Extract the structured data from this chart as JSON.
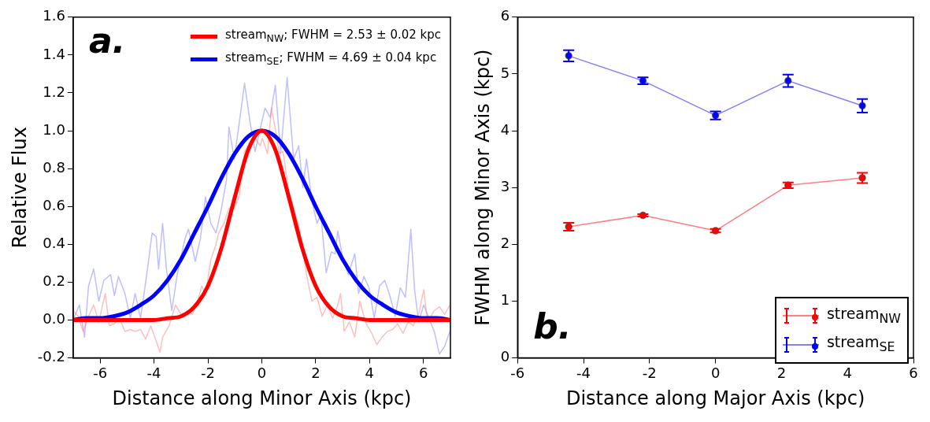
{
  "chart_data": [
    {
      "type": "line",
      "xlabel": "Distance along Minor Axis (kpc)",
      "ylabel": "Relative Flux",
      "xlim": [
        -7,
        7
      ],
      "xticks": [
        -6,
        -4,
        -2,
        0,
        2,
        4,
        6
      ],
      "ylim": [
        -0.2,
        1.6
      ],
      "yticks": [
        -0.2,
        {
          "value": 0,
          "label": "0.0"
        },
        0.2,
        0.4,
        0.6,
        0.8,
        {
          "value": 1,
          "label": "1.0"
        },
        1.2,
        1.4,
        1.6
      ],
      "grid": false,
      "legend": "top right",
      "marker": "none",
      "annotations": [
        "a."
      ],
      "series": [
        {
          "color": "#ff8080",
          "x": [
            -7,
            -6.82,
            -6.63,
            -6.43,
            -6.24,
            -6.05,
            -5.81,
            -5.66,
            -5.47,
            -5.28,
            -5.08,
            -4.88,
            -4.7,
            -4.5,
            -4.31,
            -4.12,
            -3.92,
            -3.78,
            -3.68,
            -3.44,
            -3.2,
            -2.96,
            -2.76,
            -2.57,
            -2.38,
            -2.23,
            -2.09,
            -1.89,
            -1.7,
            -1.6,
            -1.41,
            -1.22,
            -1.02,
            -0.83,
            -0.64,
            -0.44,
            -0.25,
            -0.06,
            0.02,
            0.21,
            0.36,
            0.5,
            0.65,
            0.79,
            0.99,
            1.18,
            1.37,
            1.52,
            1.66,
            1.86,
            2.05,
            2.24,
            2.43,
            2.63,
            2.82,
            2.92,
            3.06,
            3.25,
            3.45,
            3.64,
            3.84,
            4.08,
            4.27,
            4.46,
            4.66,
            4.85,
            5.04,
            5.24,
            5.43,
            5.62,
            5.82,
            6.01,
            6.15,
            6.4,
            6.59,
            6.78,
            6.98
          ],
          "values": [
            0.05,
            0.02,
            -0.06,
            0.02,
            0.08,
            -0.01,
            0.14,
            -0.03,
            -0.02,
            0.01,
            -0.06,
            -0.05,
            -0.06,
            -0.05,
            -0.1,
            -0.03,
            -0.11,
            -0.17,
            -0.09,
            -0.03,
            0.08,
            0.02,
            0.05,
            0.03,
            0.1,
            0.18,
            0.14,
            0.32,
            0.4,
            0.46,
            0.51,
            0.59,
            0.59,
            0.66,
            0.89,
            0.94,
            0.96,
            0.92,
            0.96,
            0.88,
            1.12,
            1.01,
            0.88,
            0.89,
            0.69,
            0.59,
            0.5,
            0.37,
            0.24,
            0.1,
            0.12,
            0.02,
            0.08,
            0.01,
            0.08,
            0.14,
            -0.06,
            -0.01,
            -0.09,
            0.1,
            -0.01,
            -0.07,
            -0.13,
            -0.09,
            -0.06,
            -0.05,
            -0.02,
            -0.07,
            -0.01,
            -0.03,
            0.03,
            0.16,
            -0.01,
            0.05,
            0.07,
            0.03,
            0.08
          ]
        },
        {
          "color": "#8080ff",
          "x": [
            -7,
            -6.77,
            -6.58,
            -6.43,
            -6.24,
            -6.05,
            -5.86,
            -5.61,
            -5.47,
            -5.32,
            -5.08,
            -4.88,
            -4.7,
            -4.5,
            -4.26,
            -4.07,
            -3.92,
            -3.83,
            -3.68,
            -3.54,
            -3.34,
            -3.14,
            -2.85,
            -2.72,
            -2.47,
            -2.28,
            -2.09,
            -1.89,
            -1.7,
            -1.51,
            -1.31,
            -1.22,
            -1.02,
            -0.83,
            -0.64,
            -0.44,
            -0.25,
            -0.06,
            0.12,
            0.31,
            0.5,
            0.7,
            0.94,
            1.18,
            1.37,
            1.52,
            1.66,
            1.86,
            2.05,
            2.19,
            2.39,
            2.58,
            2.72,
            2.82,
            3.01,
            3.21,
            3.45,
            3.59,
            3.79,
            3.98,
            4.17,
            4.37,
            4.56,
            4.75,
            4.95,
            5.14,
            5.33,
            5.53,
            5.67,
            5.82,
            6.01,
            6.2,
            6.4,
            6.59,
            6.78,
            6.98
          ],
          "values": [
            0,
            0.08,
            -0.09,
            0.18,
            0.27,
            0.1,
            0.21,
            0.24,
            0.13,
            0.23,
            0.14,
            0.01,
            0.14,
            0.01,
            0.25,
            0.46,
            0.44,
            0.27,
            0.51,
            0.27,
            0.05,
            0.24,
            0.43,
            0.48,
            0.31,
            0.43,
            0.65,
            0.51,
            0.46,
            0.58,
            0.74,
            1.02,
            0.85,
            1.05,
            1.25,
            1.05,
            0.89,
            1.01,
            1.12,
            1.07,
            1.24,
            0.88,
            1.28,
            0.85,
            0.92,
            0.7,
            0.85,
            0.63,
            0.51,
            0.56,
            0.25,
            0.36,
            0.35,
            0.47,
            0.32,
            0.24,
            0.35,
            0.14,
            0.23,
            0.17,
            0.01,
            0.18,
            0.21,
            0.13,
            0.02,
            0.17,
            0.12,
            0.48,
            0.16,
            -0.01,
            0.08,
            0.01,
            -0.06,
            -0.18,
            -0.14,
            -0.06
          ]
        },
        {
          "name": "stream$_{NW}$; FWHM = 2.53 ± 0.02 kpc",
          "color": "#ff0000",
          "x": [
            -7,
            -4,
            -3.5,
            -3,
            -2.5,
            -2,
            -1.5,
            -1,
            -0.5,
            0,
            0.5,
            1,
            1.5,
            2,
            2.5,
            3,
            3.5,
            4,
            7
          ],
          "values": [
            0,
            0,
            0.01,
            0.02,
            0.07,
            0.18,
            0.38,
            0.65,
            0.9,
            1,
            0.9,
            0.65,
            0.38,
            0.18,
            0.07,
            0.02,
            0.01,
            0,
            0
          ]
        },
        {
          "name": "stream$_{SE}$; FWHM = 4.69 ± 0.04 kpc",
          "color": "#0000ff",
          "x": [
            -7,
            -6.5,
            -6,
            -5.5,
            -5,
            -4.5,
            -4,
            -3.5,
            -3,
            -2.5,
            -2,
            -1.5,
            -1,
            -0.5,
            0,
            0.5,
            1,
            1.5,
            2,
            2.5,
            3,
            3.5,
            4,
            4.5,
            5,
            5.5,
            6,
            6.5,
            7
          ],
          "values": [
            0,
            0.01,
            0.01,
            0.02,
            0.04,
            0.08,
            0.13,
            0.21,
            0.32,
            0.46,
            0.6,
            0.75,
            0.88,
            0.97,
            1,
            0.97,
            0.88,
            0.75,
            0.6,
            0.46,
            0.32,
            0.21,
            0.13,
            0.08,
            0.04,
            0.02,
            0.01,
            0.01,
            0
          ]
        }
      ]
    },
    {
      "type": "line",
      "xlabel": "Distance along Major Axis (kpc)",
      "ylabel": "FWHM along Minor Axis (kpc)",
      "xlim": [
        -6,
        6
      ],
      "xticks": [
        -6,
        -4,
        -2,
        0,
        2,
        4,
        6
      ],
      "ylim": [
        0,
        6
      ],
      "yticks": [
        0,
        1,
        2,
        3,
        4,
        5,
        6
      ],
      "grid": false,
      "legend": "bottom right",
      "marker": "circle",
      "annotations": [
        "b."
      ],
      "series": [
        {
          "name": "stream$_{NW}$",
          "color": "#ff0000",
          "x": [
            -4.45,
            -2.2,
            0,
            2.2,
            4.45
          ],
          "values": [
            2.31,
            2.51,
            2.24,
            3.04,
            3.17
          ],
          "errors": [
            0.07,
            0.02,
            0.03,
            0.05,
            0.09
          ]
        },
        {
          "name": "stream$_{SE}$",
          "color": "#0000ff",
          "x": [
            -4.45,
            -2.2,
            0,
            2.2,
            4.45
          ],
          "values": [
            5.32,
            4.88,
            4.27,
            4.88,
            4.44
          ],
          "errors": [
            0.1,
            0.06,
            0.07,
            0.11,
            0.12
          ]
        }
      ]
    }
  ]
}
